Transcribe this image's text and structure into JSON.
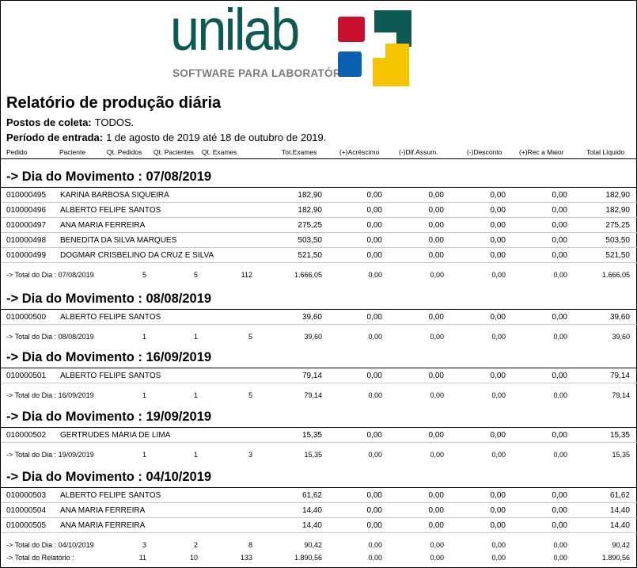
{
  "logo": {
    "word": "unilab",
    "tagline": "SOFTWARE PARA LABORATÓRIO",
    "colors": {
      "teal": "#0e5a52",
      "red": "#c8102e",
      "blue": "#0b5fb0",
      "yellow": "#f4c400"
    }
  },
  "title": "Relatório de produção diária",
  "postos": {
    "label": "Postos de coleta:",
    "value": "TODOS."
  },
  "periodo": {
    "label": "Período de entrada:",
    "value": "1 de agosto de 2019 até 18 de outubro de 2019."
  },
  "columns": [
    "Pedido",
    "Paciente",
    "Qt. Pedidos",
    "Qt. Pacientes",
    "Qt. Exames",
    "Tot.Exames",
    "(+)Acréscimo",
    "(-)Dif.Assum.",
    "(-)Desconto",
    "(+)Rec a Maior",
    "Total Líquido"
  ],
  "sections": [
    {
      "title": "-> Dia do Movimento : 07/08/2019",
      "rows": [
        [
          "010000495",
          "KARINA BARBOSA SIQUEIRA",
          "182,90",
          "0,00",
          "0,00",
          "0,00",
          "0,00",
          "182,90"
        ],
        [
          "010000496",
          "ALBERTO FELIPE SANTOS",
          "182,90",
          "0,00",
          "0,00",
          "0,00",
          "0,00",
          "182,90"
        ],
        [
          "010000497",
          "ANA MARIA FERREIRA",
          "275,25",
          "0,00",
          "0,00",
          "0,00",
          "0,00",
          "275,25"
        ],
        [
          "010000498",
          "BENEDITA DA SILVA MARQUES",
          "503,50",
          "0,00",
          "0,00",
          "0,00",
          "0,00",
          "503,50"
        ],
        [
          "010000499",
          "DOGMAR CRISBELINO DA CRUZ E SILVA",
          "521,50",
          "0,00",
          "0,00",
          "0,00",
          "0,00",
          "521,50"
        ]
      ],
      "total": [
        "-> Total do Dia : 07/08/2019",
        "5",
        "5",
        "112",
        "1.666,05",
        "0,00",
        "0,00",
        "0,00",
        "0,00",
        "1.666,05"
      ]
    },
    {
      "title": "-> Dia do Movimento : 08/08/2019",
      "rows": [
        [
          "010000500",
          "ALBERTO FELIPE SANTOS",
          "39,60",
          "0,00",
          "0,00",
          "0,00",
          "0,00",
          "39,60"
        ]
      ],
      "total": [
        "-> Total do Dia : 08/08/2019",
        "1",
        "1",
        "5",
        "39,60",
        "0,00",
        "0,00",
        "0,00",
        "0,00",
        "39,60"
      ]
    },
    {
      "title": "-> Dia do Movimento : 16/09/2019",
      "rows": [
        [
          "010000501",
          "ALBERTO FELIPE SANTOS",
          "79,14",
          "0,00",
          "0,00",
          "0,00",
          "0,00",
          "79,14"
        ]
      ],
      "total": [
        "-> Total do Dia : 16/09/2019",
        "1",
        "1",
        "5",
        "79,14",
        "0,00",
        "0,00",
        "0,00",
        "0,00",
        "79,14"
      ]
    },
    {
      "title": "-> Dia do Movimento : 19/09/2019",
      "rows": [
        [
          "010000502",
          "GERTRUDES MARIA DE LIMA",
          "15,35",
          "0,00",
          "0,00",
          "0,00",
          "0,00",
          "15,35"
        ]
      ],
      "total": [
        "-> Total do Dia : 19/09/2019",
        "1",
        "1",
        "3",
        "15,35",
        "0,00",
        "0,00",
        "0,00",
        "0,00",
        "15,35"
      ]
    },
    {
      "title": "-> Dia do Movimento : 04/10/2019",
      "rows": [
        [
          "010000503",
          "ALBERTO FELIPE SANTOS",
          "61,62",
          "0,00",
          "0,00",
          "0,00",
          "0,00",
          "61,62"
        ],
        [
          "010000504",
          "ANA MARIA FERREIRA",
          "14,40",
          "0,00",
          "0,00",
          "0,00",
          "0,00",
          "14,40"
        ],
        [
          "010000505",
          "ANA MARIA FERREIRA",
          "14,40",
          "0,00",
          "0,00",
          "0,00",
          "0,00",
          "14,40"
        ]
      ],
      "total": [
        "-> Total do Dia : 04/10/2019",
        "3",
        "2",
        "8",
        "90,42",
        "0,00",
        "0,00",
        "0,00",
        "0,00",
        "90,42"
      ]
    }
  ],
  "grand_total": [
    "-> Total do Relatório :",
    "11",
    "10",
    "133",
    "1.890,56",
    "0,00",
    "0,00",
    "0,00",
    "0,00",
    "1.890,56"
  ]
}
